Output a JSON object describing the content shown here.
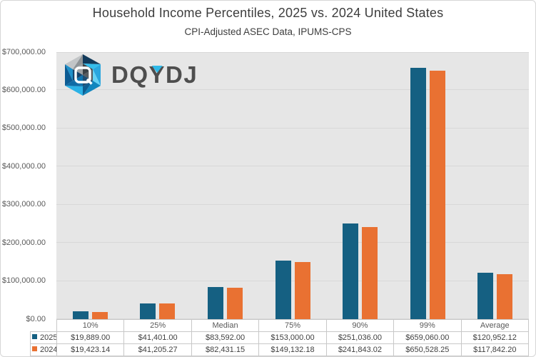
{
  "title": "Household Income Percentiles, 2025 vs. 2024 United States",
  "subtitle": "CPI-Adjusted ASEC Data, IPUMS-CPS",
  "logo": {
    "name": "DQYDJ",
    "parts": [
      "DQ",
      "Y",
      "DJ"
    ],
    "accent_color": "#2fb9e8"
  },
  "colors": {
    "series_2025": "#156082",
    "series_2024": "#E97132",
    "plot_background": "#e6e6e6",
    "gridline": "#d8d8d8",
    "title_text": "#3d3d3d",
    "axis_text": "#595959"
  },
  "chart_data": {
    "type": "bar",
    "title": "Household Income Percentiles, 2025 vs. 2024 United States",
    "subtitle": "CPI-Adjusted ASEC Data, IPUMS-CPS",
    "categories": [
      "10%",
      "25%",
      "Median",
      "75%",
      "90%",
      "99%",
      "Average"
    ],
    "series": [
      {
        "name": "2025",
        "color": "#156082",
        "values": [
          19889.0,
          41401.0,
          83592.0,
          153000.0,
          251036.0,
          659060.0,
          120952.12
        ],
        "labels": [
          "$19,889.00",
          "$41,401.00",
          "$83,592.00",
          "$153,000.00",
          "$251,036.00",
          "$659,060.00",
          "$120,952.12"
        ]
      },
      {
        "name": "2024",
        "color": "#E97132",
        "values": [
          19423.14,
          41205.27,
          82431.15,
          149132.18,
          241843.02,
          650528.25,
          117842.2
        ],
        "labels": [
          "$19,423.14",
          "$41,205.27",
          "$82,431.15",
          "$149,132.18",
          "$241,843.02",
          "$650,528.25",
          "$117,842.20"
        ]
      }
    ],
    "y_axis": {
      "min": 0,
      "max": 700000,
      "tick_step": 100000,
      "tick_values": [
        700000,
        600000,
        500000,
        400000,
        300000,
        200000,
        100000,
        0
      ],
      "tick_labels": [
        "$700,000.00",
        "$600,000.00",
        "$500,000.00",
        "$400,000.00",
        "$300,000.00",
        "$200,000.00",
        "$100,000.00",
        "$0.00"
      ]
    },
    "grid": "horizontal",
    "legend_position": "data-table-left"
  }
}
